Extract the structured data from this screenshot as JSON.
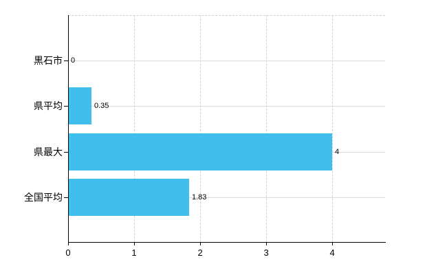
{
  "chart_data": {
    "type": "bar",
    "orientation": "horizontal",
    "title": "",
    "xlabel": "",
    "ylabel": "",
    "categories": [
      "黒石市",
      "県平均",
      "県最大",
      "全国平均"
    ],
    "values": [
      0,
      0.35,
      4,
      1.83
    ],
    "value_labels": [
      "0",
      "0.35",
      "4",
      "1.83"
    ],
    "x_ticks": [
      "0",
      "1",
      "2",
      "3",
      "4"
    ],
    "x_tick_values": [
      0,
      1,
      2,
      3,
      4
    ],
    "xlim": [
      0,
      4.8
    ],
    "legend": "none",
    "grid": {
      "horizontal": "solid",
      "vertical": "dashed",
      "top_border": "dashed"
    },
    "colors": {
      "bar": "#41BFEC",
      "grid": "#DCDCDC",
      "axis": "#000000",
      "text": "#000000",
      "background": "#FFFFFF"
    }
  }
}
